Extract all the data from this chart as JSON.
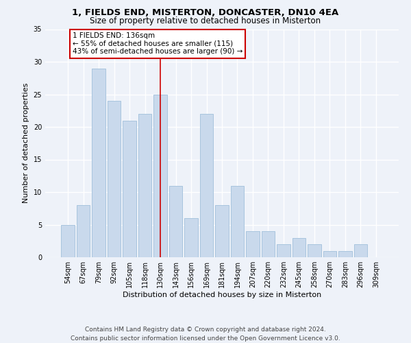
{
  "title": "1, FIELDS END, MISTERTON, DONCASTER, DN10 4EA",
  "subtitle": "Size of property relative to detached houses in Misterton",
  "xlabel": "Distribution of detached houses by size in Misterton",
  "ylabel": "Number of detached properties",
  "categories": [
    "54sqm",
    "67sqm",
    "79sqm",
    "92sqm",
    "105sqm",
    "118sqm",
    "130sqm",
    "143sqm",
    "156sqm",
    "169sqm",
    "181sqm",
    "194sqm",
    "207sqm",
    "220sqm",
    "232sqm",
    "245sqm",
    "258sqm",
    "270sqm",
    "283sqm",
    "296sqm",
    "309sqm"
  ],
  "values": [
    5,
    8,
    29,
    24,
    21,
    22,
    25,
    11,
    6,
    22,
    8,
    11,
    4,
    4,
    2,
    3,
    2,
    1,
    1,
    2,
    0
  ],
  "bar_color": "#c9d9ec",
  "bar_edge_color": "#a8c4de",
  "ylim": [
    0,
    35
  ],
  "yticks": [
    0,
    5,
    10,
    15,
    20,
    25,
    30,
    35
  ],
  "annotation_title": "1 FIELDS END: 136sqm",
  "annotation_line1": "← 55% of detached houses are smaller (115)",
  "annotation_line2": "43% of semi-detached houses are larger (90) →",
  "annotation_box_color": "#ffffff",
  "annotation_box_edge_color": "#cc0000",
  "vline_color": "#cc0000",
  "footer_line1": "Contains HM Land Registry data © Crown copyright and database right 2024.",
  "footer_line2": "Contains public sector information licensed under the Open Government Licence v3.0.",
  "background_color": "#eef2f9",
  "grid_color": "#ffffff",
  "title_fontsize": 9.5,
  "subtitle_fontsize": 8.5,
  "ylabel_fontsize": 8,
  "xlabel_fontsize": 8,
  "tick_fontsize": 7,
  "annotation_fontsize": 7.5,
  "footer_fontsize": 6.5
}
